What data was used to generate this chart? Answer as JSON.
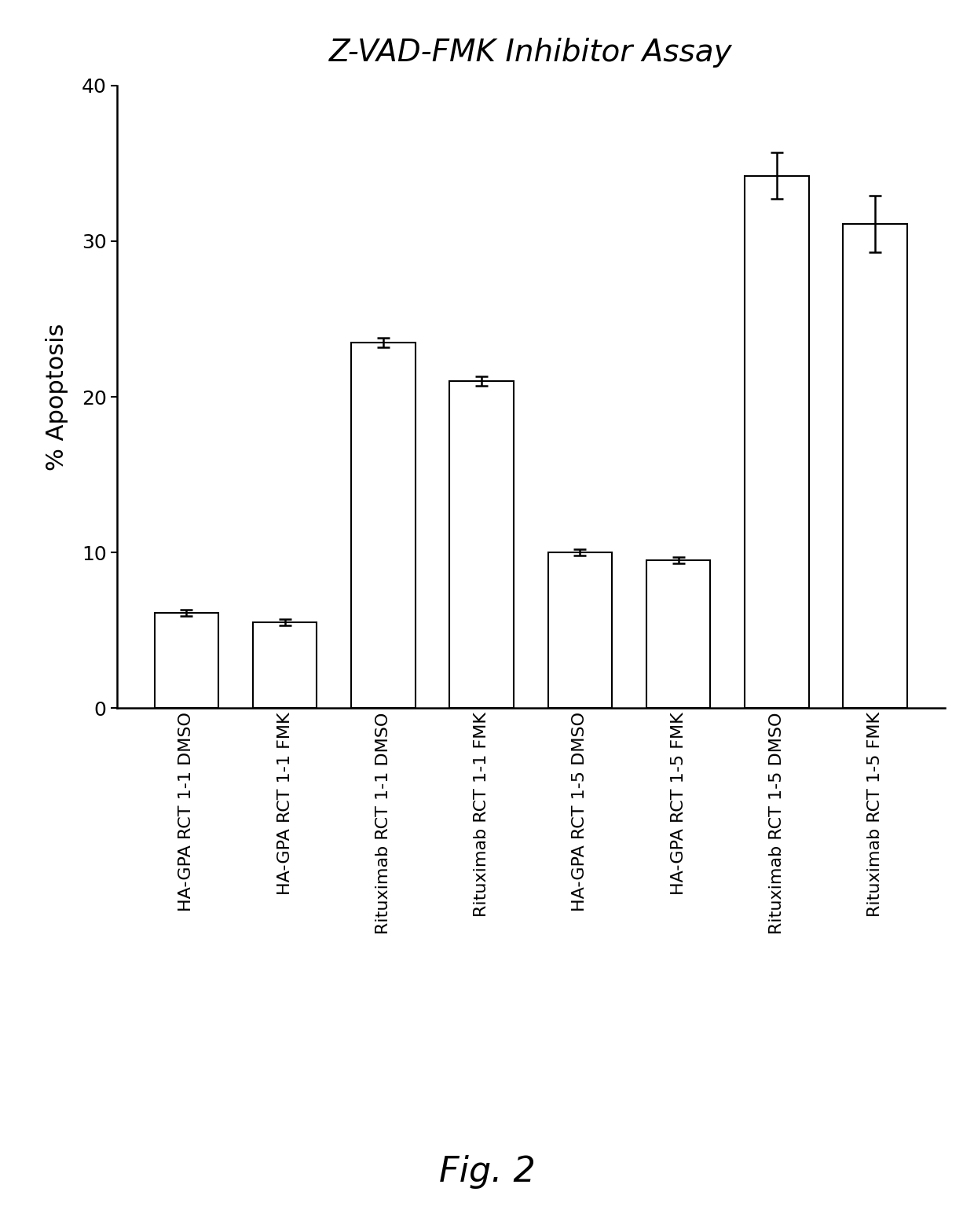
{
  "title": "Z-VAD-FMK Inhibitor Assay",
  "ylabel": "% Apoptosis",
  "fig_label": "Fig. 2",
  "categories": [
    "HA-GPA RCT 1-1 DMSO",
    "HA-GPA RCT 1-1 FMK",
    "Rituximab RCT 1-1 DMSO",
    "Rituximab RCT 1-1 FMK",
    "HA-GPA RCT 1-5 DMSO",
    "HA-GPA RCT 1-5 FMK",
    "Rituximab RCT 1-5 DMSO",
    "Rituximab RCT 1-5 FMK"
  ],
  "values": [
    6.1,
    5.5,
    23.5,
    21.0,
    10.0,
    9.5,
    34.2,
    31.1
  ],
  "errors": [
    0.2,
    0.2,
    0.3,
    0.3,
    0.2,
    0.2,
    1.5,
    1.8
  ],
  "bar_color": "#ffffff",
  "bar_edgecolor": "#000000",
  "ylim": [
    0,
    40
  ],
  "yticks": [
    0,
    10,
    20,
    30,
    40
  ],
  "background_color": "#ffffff",
  "title_fontsize": 28,
  "ylabel_fontsize": 22,
  "tick_fontsize": 18,
  "xtick_fontsize": 16,
  "fig_label_fontsize": 32,
  "bar_width": 0.65,
  "capsize": 6,
  "elinewidth": 1.8,
  "capthick": 1.8,
  "bar_linewidth": 1.5,
  "spine_linewidth": 1.8
}
